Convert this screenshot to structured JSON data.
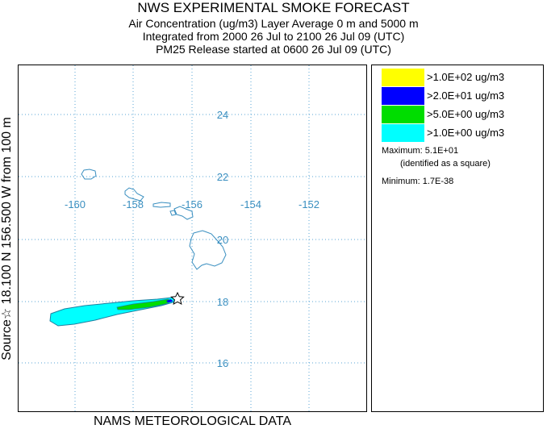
{
  "header": {
    "title": "NWS EXPERIMENTAL SMOKE FORECAST",
    "line2": "Air Concentration (ug/m3) Layer Average    0 m and  5000 m",
    "line3": "Integrated from 2000 26 Jul to 2100 26 Jul 09 (UTC)",
    "line4": "PM25 Release started at 0600 26 Jul 09 (UTC)"
  },
  "side_label": "Source☆ 18.100  N 156.500  W    from   100 m",
  "footer": "NAMS METEOROLOGICAL DATA",
  "map": {
    "lon_labels": [
      "-160",
      "-158",
      "-156",
      "-154",
      "-152"
    ],
    "lat_labels": [
      "24",
      "22",
      "20",
      "18",
      "16"
    ],
    "grid_color": "#5aa6d6",
    "coast_color": "#3a8fc0",
    "source_marker": "star-icon"
  },
  "legend": {
    "items": [
      {
        "label": ">1.0E+02 ug/m3",
        "color": "#ffff00"
      },
      {
        "label": ">2.0E+01 ug/m3",
        "color": "#0000ff"
      },
      {
        "label": ">5.0E+00 ug/m3",
        "color": "#00dd00"
      },
      {
        "label": ">1.0E+00 ug/m3",
        "color": "#00ffff"
      }
    ],
    "maximum": "Maximum: 5.1E+01",
    "maximum_note": "(identified as a square)",
    "minimum": "Minimum: 1.7E-38"
  }
}
